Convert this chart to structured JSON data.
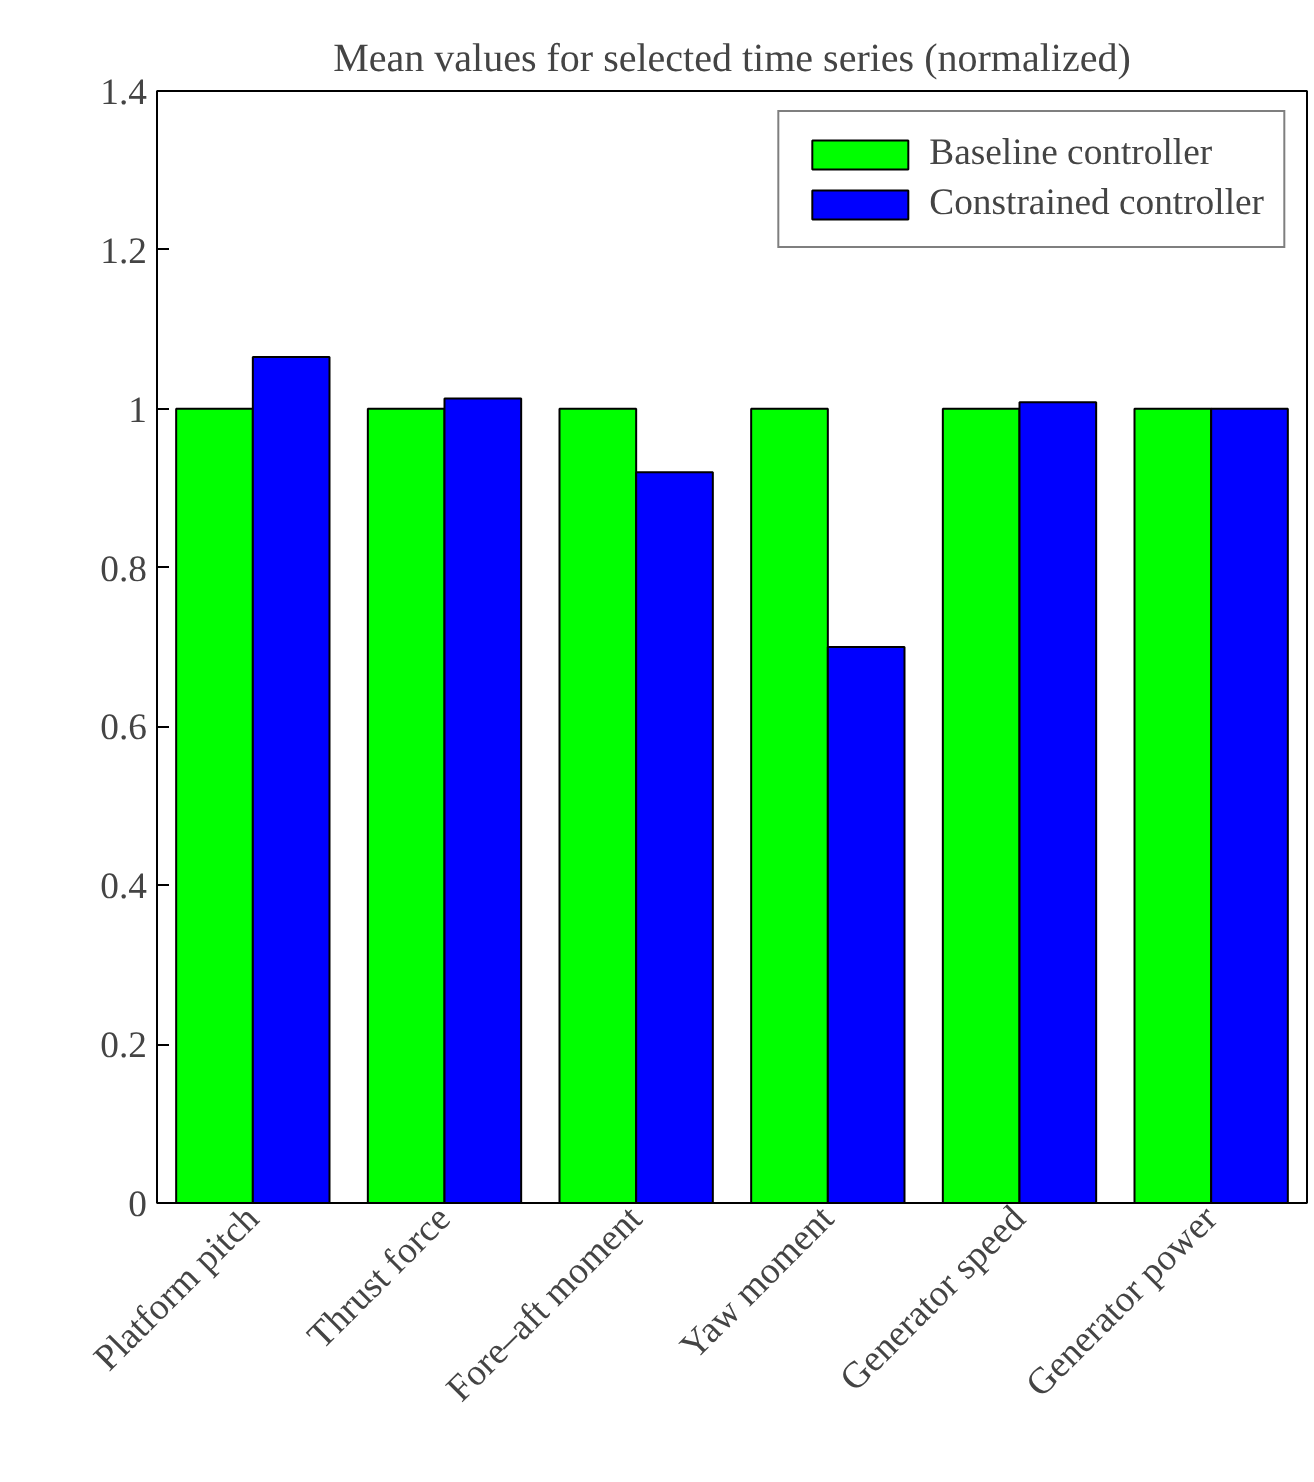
{
  "chart_data": {
    "type": "bar",
    "title": "Mean values for selected time series (normalized)",
    "categories": [
      "Platform pitch",
      "Thrust force",
      "Fore–aft moment",
      "Yaw moment",
      "Generator speed",
      "Generator power"
    ],
    "series": [
      {
        "name": "Baseline controller",
        "color": "#00ff00",
        "values": [
          1,
          1,
          1,
          1,
          1,
          1
        ]
      },
      {
        "name": "Constrained controller",
        "color": "#0000ff",
        "values": [
          1.065,
          1.013,
          0.92,
          0.7,
          1.008,
          1.0
        ]
      }
    ],
    "ylim": [
      0,
      1.4
    ],
    "yticks": [
      0,
      0.2,
      0.4,
      0.6,
      0.8,
      1,
      1.2,
      1.4
    ],
    "grid": false,
    "legend": "top right"
  }
}
